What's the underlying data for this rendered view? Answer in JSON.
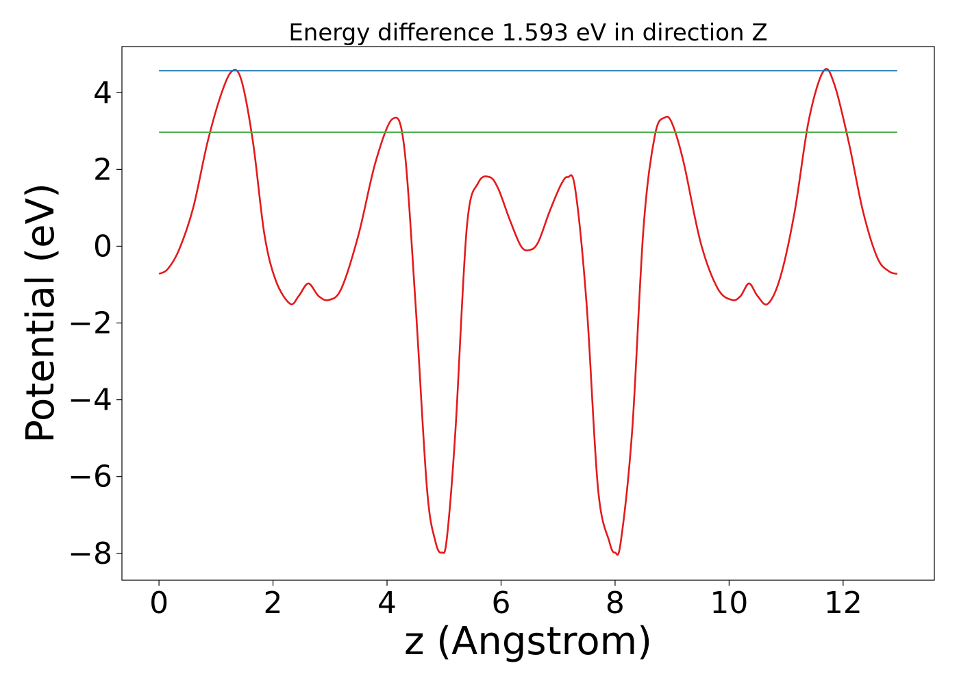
{
  "chart_data": {
    "type": "line",
    "title": "Energy difference 1.593 eV in direction Z",
    "xlabel": "z (Angstrom)",
    "ylabel": "Potential (eV)",
    "xlim": [
      -0.65,
      13.6
    ],
    "ylim": [
      -8.7,
      5.2
    ],
    "xticks": [
      0,
      2,
      4,
      6,
      8,
      10,
      12
    ],
    "yticks": [
      -8,
      -6,
      -4,
      -2,
      0,
      2,
      4
    ],
    "ytick_labels": [
      "−8",
      "−6",
      "−4",
      "−2",
      "0",
      "2",
      "4"
    ],
    "grid": false,
    "legend": "none",
    "series": [
      {
        "color": "#e31a1c",
        "x": [
          0,
          0.15,
          0.35,
          0.6,
          0.85,
          1.1,
          1.29,
          1.45,
          1.65,
          1.85,
          2.05,
          2.3,
          2.45,
          2.62,
          2.8,
          2.98,
          3.2,
          3.5,
          3.8,
          4.1,
          4.3,
          4.5,
          4.7,
          4.85,
          4.96,
          5.05,
          5.2,
          5.4,
          5.6,
          5.8,
          5.95,
          6.15,
          6.35,
          6.5,
          6.65,
          6.85,
          7.05,
          7.17,
          7.3,
          7.5,
          7.7,
          7.9,
          8.0,
          8.1,
          8.3,
          8.5,
          8.7,
          8.87,
          9.0,
          9.2,
          9.5,
          9.8,
          10.05,
          10.2,
          10.35,
          10.5,
          10.68,
          10.9,
          11.15,
          11.4,
          11.66,
          11.85,
          12.1,
          12.35,
          12.6,
          12.8,
          12.95
        ],
        "y": [
          -0.72,
          -0.6,
          -0.1,
          1.0,
          2.7,
          4.0,
          4.57,
          4.3,
          2.7,
          0.3,
          -0.9,
          -1.5,
          -1.3,
          -0.97,
          -1.3,
          -1.4,
          -1.1,
          0.3,
          2.2,
          3.32,
          2.6,
          -1.5,
          -6.3,
          -7.7,
          -7.98,
          -7.6,
          -4.8,
          0.5,
          1.65,
          1.8,
          1.5,
          0.7,
          0.0,
          -0.1,
          0.1,
          0.9,
          1.6,
          1.8,
          1.5,
          -1.5,
          -6.3,
          -7.7,
          -7.98,
          -7.7,
          -4.8,
          0.5,
          2.9,
          3.35,
          3.2,
          2.2,
          0.1,
          -1.1,
          -1.4,
          -1.3,
          -0.97,
          -1.3,
          -1.5,
          -0.8,
          0.9,
          3.3,
          4.57,
          4.2,
          2.7,
          0.9,
          -0.3,
          -0.65,
          -0.72
        ]
      },
      {
        "color": "#1f77b4",
        "x": [
          0,
          12.95
        ],
        "y": [
          4.57,
          4.57
        ]
      },
      {
        "color": "#4daf4a",
        "x": [
          0,
          12.95
        ],
        "y": [
          2.97,
          2.97
        ]
      }
    ]
  }
}
